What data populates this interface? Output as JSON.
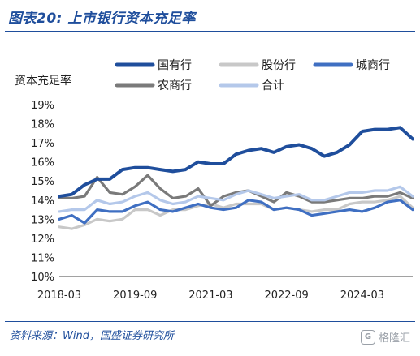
{
  "header": {
    "title": "图表20: 上市银行资本充足率"
  },
  "footer": {
    "source": "资料来源：Wind，国盛证券研究所",
    "watermark_text": "格隆汇",
    "watermark_logo": "G"
  },
  "colors": {
    "brand": "#1f4e9c",
    "state_owned": "#1f4e9c",
    "joint_stock": "#c8c8c8",
    "city": "#3f6fc2",
    "rural": "#7a7a7a",
    "total": "#b4c8ea"
  },
  "chart_data": {
    "type": "line",
    "title": "",
    "ylabel": "资本充足率",
    "xlabel": "",
    "ylim": [
      10,
      19
    ],
    "yticks": [
      "10%",
      "11%",
      "12%",
      "13%",
      "14%",
      "15%",
      "16%",
      "17%",
      "18%",
      "19%"
    ],
    "xticks": [
      "2018-03",
      "2019-09",
      "2021-03",
      "2022-09",
      "2024-03"
    ],
    "x": [
      "2018-03",
      "2018-06",
      "2018-09",
      "2018-12",
      "2019-03",
      "2019-06",
      "2019-09",
      "2019-12",
      "2020-03",
      "2020-06",
      "2020-09",
      "2020-12",
      "2021-03",
      "2021-06",
      "2021-09",
      "2021-12",
      "2022-03",
      "2022-06",
      "2022-09",
      "2022-12",
      "2023-03",
      "2023-06",
      "2023-09",
      "2023-12",
      "2024-03",
      "2024-06",
      "2024-09",
      "2024-12",
      "2025-03"
    ],
    "legend_position": "top",
    "grid": false,
    "series": [
      {
        "name": "国有行",
        "color_key": "state_owned",
        "values": [
          14.2,
          14.3,
          14.8,
          15.1,
          15.1,
          15.6,
          15.7,
          15.7,
          15.6,
          15.5,
          15.6,
          16.0,
          15.9,
          15.9,
          16.4,
          16.6,
          16.7,
          16.5,
          16.8,
          16.9,
          16.7,
          16.3,
          16.5,
          16.9,
          17.6,
          17.7,
          17.7,
          17.8,
          17.2
        ]
      },
      {
        "name": "股份行",
        "color_key": "joint_stock",
        "values": [
          12.6,
          12.5,
          12.7,
          13.0,
          12.9,
          13.0,
          13.5,
          13.5,
          13.2,
          13.5,
          13.5,
          13.7,
          13.8,
          13.6,
          13.8,
          13.8,
          13.8,
          13.5,
          13.6,
          13.5,
          13.4,
          13.5,
          13.5,
          13.8,
          13.9,
          13.9,
          14.0,
          14.2,
          13.6
        ]
      },
      {
        "name": "城商行",
        "color_key": "city",
        "values": [
          13.0,
          13.2,
          12.8,
          13.5,
          13.4,
          13.4,
          13.7,
          13.9,
          13.5,
          13.4,
          13.6,
          13.8,
          13.6,
          13.5,
          13.6,
          14.0,
          13.9,
          13.5,
          13.6,
          13.5,
          13.2,
          13.3,
          13.4,
          13.5,
          13.4,
          13.6,
          13.9,
          14.0,
          13.5
        ]
      },
      {
        "name": "农商行",
        "color_key": "rural",
        "values": [
          14.1,
          14.1,
          14.2,
          15.2,
          14.4,
          14.3,
          14.7,
          15.3,
          14.6,
          14.1,
          14.2,
          14.6,
          13.7,
          14.2,
          14.4,
          14.5,
          14.2,
          13.9,
          14.4,
          14.2,
          13.9,
          13.9,
          14.0,
          14.1,
          14.1,
          14.2,
          14.2,
          14.4,
          14.1
        ]
      },
      {
        "name": "合计",
        "color_key": "total",
        "values": [
          13.4,
          13.5,
          13.5,
          14.0,
          13.8,
          13.9,
          14.2,
          14.4,
          14.0,
          13.8,
          13.9,
          14.2,
          14.1,
          14.0,
          14.3,
          14.5,
          14.3,
          14.1,
          14.2,
          14.3,
          14.0,
          14.0,
          14.2,
          14.4,
          14.4,
          14.5,
          14.5,
          14.7,
          14.2
        ]
      }
    ]
  }
}
